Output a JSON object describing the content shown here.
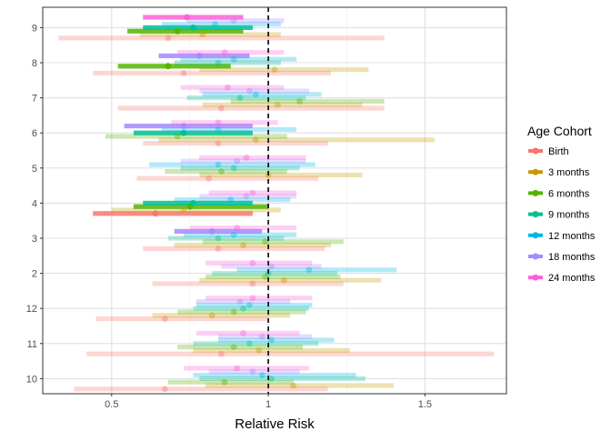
{
  "chart_data": {
    "type": "forest",
    "xlabel": "Relative Risk",
    "ylabel": "",
    "xlim": [
      0.28,
      1.76
    ],
    "xticks": [
      0.5,
      1.0,
      1.5
    ],
    "xtick_labels": [
      "0.5",
      "1",
      "1.5"
    ],
    "reference_line_x": 1.0,
    "grid": true,
    "legend": {
      "title": "Age Cohort",
      "position": "right"
    },
    "categories": [
      "9",
      "8",
      "7",
      "6",
      "5",
      "4",
      "3",
      "2",
      "12",
      "11",
      "10"
    ],
    "cohorts": [
      {
        "name": "Birth",
        "color": "#F8766D"
      },
      {
        "name": "3 months",
        "color": "#C49A00"
      },
      {
        "name": "6 months",
        "color": "#53B400"
      },
      {
        "name": "9 months",
        "color": "#00C094"
      },
      {
        "name": "12 months",
        "color": "#00B6EB"
      },
      {
        "name": "18 months",
        "color": "#A58AFF"
      },
      {
        "name": "24 months",
        "color": "#FB61D7"
      }
    ],
    "significant_alpha": 0.85,
    "nonsignificant_alpha": 0.3,
    "rows": [
      {
        "category": "9",
        "estimates": [
          {
            "cohort": "Birth",
            "est": 0.68,
            "low": 0.33,
            "high": 1.37,
            "sig": false
          },
          {
            "cohort": "3 months",
            "est": 0.79,
            "low": 0.59,
            "high": 1.04,
            "sig": false
          },
          {
            "cohort": "6 months",
            "est": 0.71,
            "low": 0.55,
            "high": 0.92,
            "sig": true
          },
          {
            "cohort": "9 months",
            "est": 0.76,
            "low": 0.6,
            "high": 0.95,
            "sig": true
          },
          {
            "cohort": "12 months",
            "est": 0.83,
            "low": 0.66,
            "high": 1.04,
            "sig": false
          },
          {
            "cohort": "18 months",
            "est": 0.89,
            "low": 0.74,
            "high": 1.05,
            "sig": false
          },
          {
            "cohort": "24 months",
            "est": 0.74,
            "low": 0.6,
            "high": 0.92,
            "sig": true
          }
        ]
      },
      {
        "category": "8",
        "estimates": [
          {
            "cohort": "Birth",
            "est": 0.73,
            "low": 0.44,
            "high": 1.2,
            "sig": false
          },
          {
            "cohort": "3 months",
            "est": 1.02,
            "low": 0.78,
            "high": 1.32,
            "sig": false
          },
          {
            "cohort": "6 months",
            "est": 0.68,
            "low": 0.52,
            "high": 0.88,
            "sig": true
          },
          {
            "cohort": "9 months",
            "est": 0.84,
            "low": 0.7,
            "high": 1.04,
            "sig": false
          },
          {
            "cohort": "12 months",
            "est": 0.89,
            "low": 0.72,
            "high": 1.09,
            "sig": false
          },
          {
            "cohort": "18 months",
            "est": 0.78,
            "low": 0.65,
            "high": 0.94,
            "sig": true
          },
          {
            "cohort": "24 months",
            "est": 0.86,
            "low": 0.71,
            "high": 1.05,
            "sig": false
          }
        ]
      },
      {
        "category": "7",
        "estimates": [
          {
            "cohort": "Birth",
            "est": 0.85,
            "low": 0.52,
            "high": 1.37,
            "sig": false
          },
          {
            "cohort": "3 months",
            "est": 1.03,
            "low": 0.79,
            "high": 1.3,
            "sig": false
          },
          {
            "cohort": "6 months",
            "est": 1.1,
            "low": 0.88,
            "high": 1.37,
            "sig": false
          },
          {
            "cohort": "9 months",
            "est": 0.91,
            "low": 0.74,
            "high": 1.12,
            "sig": false
          },
          {
            "cohort": "12 months",
            "est": 0.96,
            "low": 0.79,
            "high": 1.17,
            "sig": false
          },
          {
            "cohort": "18 months",
            "est": 0.94,
            "low": 0.78,
            "high": 1.13,
            "sig": false
          },
          {
            "cohort": "24 months",
            "est": 0.87,
            "low": 0.72,
            "high": 1.05,
            "sig": false
          }
        ]
      },
      {
        "category": "6",
        "estimates": [
          {
            "cohort": "Birth",
            "est": 0.84,
            "low": 0.6,
            "high": 1.19,
            "sig": false
          },
          {
            "cohort": "3 months",
            "est": 0.96,
            "low": 0.65,
            "high": 1.53,
            "sig": false
          },
          {
            "cohort": "6 months",
            "est": 0.71,
            "low": 0.48,
            "high": 1.06,
            "sig": false
          },
          {
            "cohort": "9 months",
            "est": 0.73,
            "low": 0.57,
            "high": 0.95,
            "sig": true
          },
          {
            "cohort": "12 months",
            "est": 0.84,
            "low": 0.66,
            "high": 1.09,
            "sig": false
          },
          {
            "cohort": "18 months",
            "est": 0.73,
            "low": 0.54,
            "high": 0.95,
            "sig": true
          },
          {
            "cohort": "24 months",
            "est": 0.84,
            "low": 0.69,
            "high": 1.03,
            "sig": false
          }
        ]
      },
      {
        "category": "5",
        "estimates": [
          {
            "cohort": "Birth",
            "est": 0.81,
            "low": 0.58,
            "high": 1.16,
            "sig": false
          },
          {
            "cohort": "3 months",
            "est": 1.0,
            "low": 0.78,
            "high": 1.3,
            "sig": false
          },
          {
            "cohort": "6 months",
            "est": 0.85,
            "low": 0.67,
            "high": 1.06,
            "sig": false
          },
          {
            "cohort": "9 months",
            "est": 0.89,
            "low": 0.72,
            "high": 1.1,
            "sig": false
          },
          {
            "cohort": "12 months",
            "est": 0.84,
            "low": 0.62,
            "high": 1.15,
            "sig": false
          },
          {
            "cohort": "18 months",
            "est": 0.9,
            "low": 0.72,
            "high": 1.12,
            "sig": false
          },
          {
            "cohort": "24 months",
            "est": 0.93,
            "low": 0.78,
            "high": 1.12,
            "sig": false
          }
        ]
      },
      {
        "category": "4",
        "estimates": [
          {
            "cohort": "Birth",
            "est": 0.64,
            "low": 0.44,
            "high": 0.95,
            "sig": true
          },
          {
            "cohort": "3 months",
            "est": 0.73,
            "low": 0.5,
            "high": 1.04,
            "sig": false
          },
          {
            "cohort": "6 months",
            "est": 0.75,
            "low": 0.57,
            "high": 1.0,
            "sig": true
          },
          {
            "cohort": "9 months",
            "est": 0.76,
            "low": 0.6,
            "high": 0.95,
            "sig": true
          },
          {
            "cohort": "12 months",
            "est": 0.88,
            "low": 0.7,
            "high": 1.07,
            "sig": false
          },
          {
            "cohort": "18 months",
            "est": 0.93,
            "low": 0.78,
            "high": 1.09,
            "sig": false
          },
          {
            "cohort": "24 months",
            "est": 0.95,
            "low": 0.81,
            "high": 1.09,
            "sig": false
          }
        ]
      },
      {
        "category": "3",
        "estimates": [
          {
            "cohort": "Birth",
            "est": 0.84,
            "low": 0.6,
            "high": 1.18,
            "sig": false
          },
          {
            "cohort": "3 months",
            "est": 0.92,
            "low": 0.7,
            "high": 1.2,
            "sig": false
          },
          {
            "cohort": "6 months",
            "est": 0.99,
            "low": 0.79,
            "high": 1.24,
            "sig": false
          },
          {
            "cohort": "9 months",
            "est": 0.84,
            "low": 0.68,
            "high": 1.05,
            "sig": false
          },
          {
            "cohort": "12 months",
            "est": 0.89,
            "low": 0.73,
            "high": 1.09,
            "sig": false
          },
          {
            "cohort": "18 months",
            "est": 0.82,
            "low": 0.7,
            "high": 0.98,
            "sig": true
          },
          {
            "cohort": "24 months",
            "est": 0.9,
            "low": 0.75,
            "high": 1.09,
            "sig": false
          }
        ]
      },
      {
        "category": "2",
        "estimates": [
          {
            "cohort": "Birth",
            "est": 0.95,
            "low": 0.63,
            "high": 1.24,
            "sig": false
          },
          {
            "cohort": "3 months",
            "est": 1.05,
            "low": 0.78,
            "high": 1.36,
            "sig": false
          },
          {
            "cohort": "6 months",
            "est": 0.99,
            "low": 0.8,
            "high": 1.23,
            "sig": false
          },
          {
            "cohort": "9 months",
            "est": 1.0,
            "low": 0.82,
            "high": 1.22,
            "sig": false
          },
          {
            "cohort": "12 months",
            "est": 1.13,
            "low": 0.9,
            "high": 1.41,
            "sig": false
          },
          {
            "cohort": "18 months",
            "est": 1.01,
            "low": 0.85,
            "high": 1.17,
            "sig": false
          },
          {
            "cohort": "24 months",
            "est": 0.95,
            "low": 0.8,
            "high": 1.14,
            "sig": false
          }
        ]
      },
      {
        "category": "12",
        "estimates": [
          {
            "cohort": "Birth",
            "est": 0.67,
            "low": 0.45,
            "high": 1.0,
            "sig": false
          },
          {
            "cohort": "3 months",
            "est": 0.82,
            "low": 0.63,
            "high": 1.07,
            "sig": false
          },
          {
            "cohort": "6 months",
            "est": 0.89,
            "low": 0.71,
            "high": 1.12,
            "sig": false
          },
          {
            "cohort": "9 months",
            "est": 0.92,
            "low": 0.76,
            "high": 1.13,
            "sig": false
          },
          {
            "cohort": "12 months",
            "est": 0.94,
            "low": 0.77,
            "high": 1.14,
            "sig": false
          },
          {
            "cohort": "18 months",
            "est": 0.91,
            "low": 0.77,
            "high": 1.07,
            "sig": false
          },
          {
            "cohort": "24 months",
            "est": 0.95,
            "low": 0.8,
            "high": 1.14,
            "sig": false
          }
        ]
      },
      {
        "category": "11",
        "estimates": [
          {
            "cohort": "Birth",
            "est": 0.85,
            "low": 0.42,
            "high": 1.72,
            "sig": false
          },
          {
            "cohort": "3 months",
            "est": 0.97,
            "low": 0.76,
            "high": 1.26,
            "sig": false
          },
          {
            "cohort": "6 months",
            "est": 0.89,
            "low": 0.71,
            "high": 1.11,
            "sig": false
          },
          {
            "cohort": "9 months",
            "est": 0.94,
            "low": 0.76,
            "high": 1.16,
            "sig": false
          },
          {
            "cohort": "12 months",
            "est": 1.01,
            "low": 0.84,
            "high": 1.21,
            "sig": false
          },
          {
            "cohort": "18 months",
            "est": 0.98,
            "low": 0.84,
            "high": 1.14,
            "sig": false
          },
          {
            "cohort": "24 months",
            "est": 0.92,
            "low": 0.77,
            "high": 1.1,
            "sig": false
          }
        ]
      },
      {
        "category": "10",
        "estimates": [
          {
            "cohort": "Birth",
            "est": 0.67,
            "low": 0.38,
            "high": 1.19,
            "sig": false
          },
          {
            "cohort": "3 months",
            "est": 1.08,
            "low": 0.8,
            "high": 1.4,
            "sig": false
          },
          {
            "cohort": "6 months",
            "est": 0.86,
            "low": 0.68,
            "high": 1.08,
            "sig": false
          },
          {
            "cohort": "9 months",
            "est": 1.01,
            "low": 0.78,
            "high": 1.31,
            "sig": false
          },
          {
            "cohort": "12 months",
            "est": 0.98,
            "low": 0.76,
            "high": 1.28,
            "sig": false
          },
          {
            "cohort": "18 months",
            "est": 0.95,
            "low": 0.81,
            "high": 1.1,
            "sig": false
          },
          {
            "cohort": "24 months",
            "est": 0.9,
            "low": 0.73,
            "high": 1.13,
            "sig": false
          }
        ]
      }
    ]
  }
}
